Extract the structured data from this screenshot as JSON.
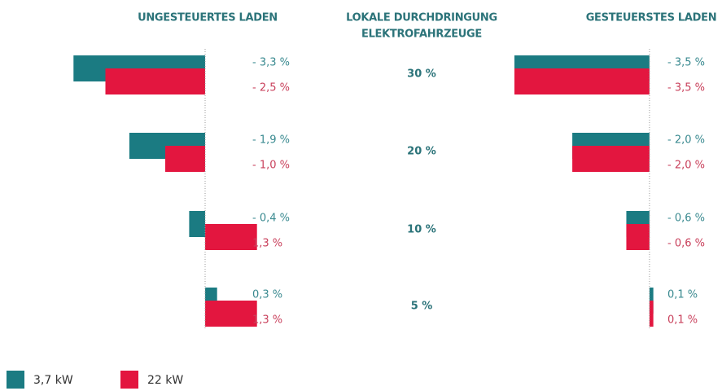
{
  "chart_data": {
    "type": "bar",
    "category_title": [
      "LOKALE DURCHDRINGUNG",
      "ELEKTROFAHRZEUGE"
    ],
    "categories": [
      "30 %",
      "20 %",
      "10 %",
      "5 %"
    ],
    "legend": [
      {
        "name": "3,7 kW",
        "color": "#1b7b82"
      },
      {
        "name": "22 kW",
        "color": "#e3163f"
      }
    ],
    "panels": [
      {
        "title": "UNGESTEUERTES LADEN",
        "xlim": [
          -3.5,
          1.5
        ],
        "series": [
          {
            "values": [
              -3.3,
              -1.9,
              -0.4,
              0.3
            ],
            "value_labels": [
              "- 3,3 %",
              "- 1,9 %",
              "- 0,4 %",
              "0,3 %"
            ]
          },
          {
            "values": [
              -2.5,
              -1.0,
              1.3,
              1.3
            ],
            "value_labels": [
              "- 2,5 %",
              "- 1,0 %",
              "1,3 %",
              "1,3 %"
            ]
          }
        ]
      },
      {
        "title": "GESTEUERSTES LADEN",
        "xlim": [
          -3.5,
          1.5
        ],
        "series": [
          {
            "values": [
              -3.5,
              -2.0,
              -0.6,
              0.1
            ],
            "value_labels": [
              "- 3,5 %",
              "- 2,0 %",
              "- 0,6 %",
              "0,1 %"
            ]
          },
          {
            "values": [
              -3.5,
              -2.0,
              -0.6,
              0.1
            ],
            "value_labels": [
              "- 3,5 %",
              "- 2,0 %",
              "- 0,6 %",
              "0,1 %"
            ]
          }
        ]
      }
    ]
  }
}
